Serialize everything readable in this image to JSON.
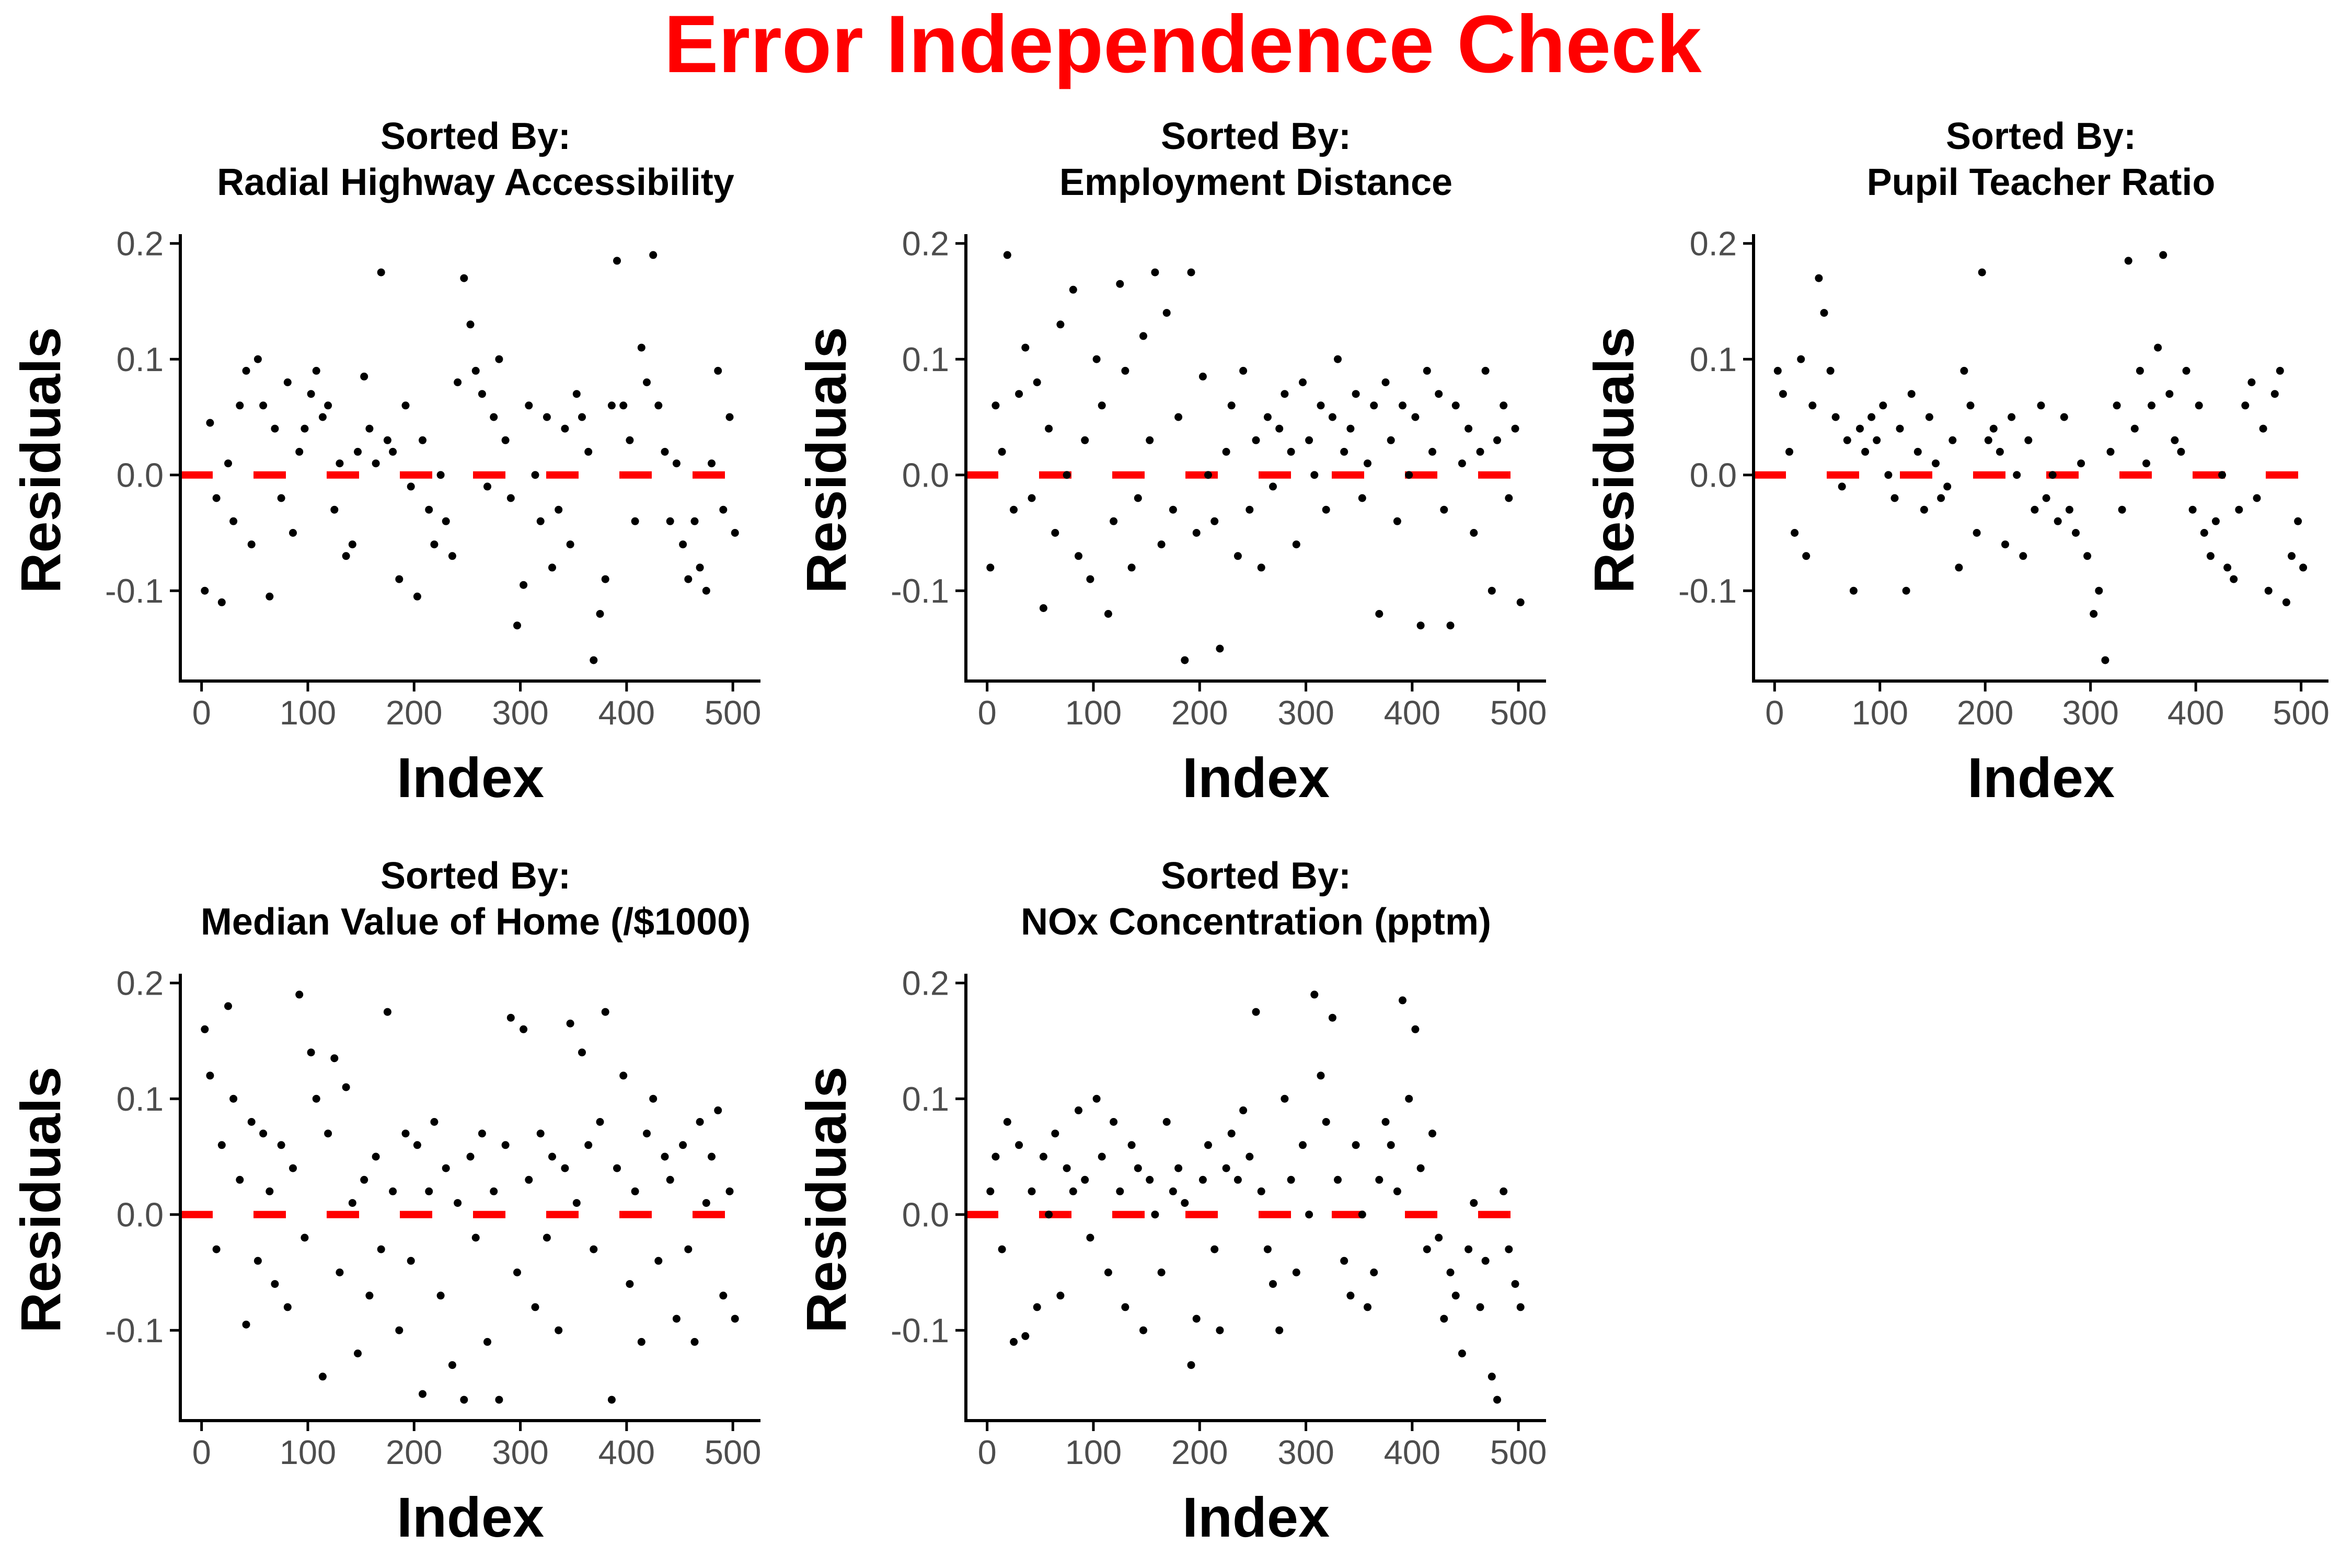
{
  "title": "Error Independence Check",
  "colors": {
    "title": "#ff0000",
    "points": "#000000",
    "reference_line": "#ff0000",
    "axis": "#000000",
    "tick_text": "#4d4d4d"
  },
  "chart_data": [
    {
      "type": "scatter",
      "title_line1": "Sorted By:",
      "title_line2": "Radial Highway Accessibility",
      "xlabel": "Index",
      "ylabel": "Residuals",
      "xlim": [
        -20,
        526
      ],
      "ylim": [
        -0.178,
        0.208
      ],
      "xticks": [
        0,
        100,
        200,
        300,
        400,
        500
      ],
      "xtick_labels": [
        "0",
        "100",
        "200",
        "300",
        "400",
        "500"
      ],
      "yticks": [
        -0.1,
        0.0,
        0.1,
        0.2
      ],
      "ytick_labels": [
        "-0.1",
        "0.0",
        "0.1",
        "0.2"
      ],
      "reference_line": 0,
      "grid": false,
      "points_x": [
        3,
        8,
        14,
        19,
        25,
        30,
        36,
        42,
        47,
        53,
        58,
        64,
        69,
        75,
        81,
        86,
        92,
        97,
        103,
        108,
        114,
        119,
        125,
        130,
        136,
        142,
        147,
        153,
        158,
        164,
        169,
        175,
        180,
        186,
        192,
        197,
        203,
        208,
        214,
        219,
        225,
        230,
        236,
        241,
        247,
        253,
        258,
        264,
        269,
        275,
        280,
        286,
        291,
        297,
        303,
        308,
        314,
        319,
        325,
        330,
        336,
        342,
        347,
        353,
        358,
        364,
        369,
        375,
        380,
        386,
        391,
        397,
        403,
        408,
        414,
        419,
        425,
        430,
        436,
        441,
        447,
        453,
        458,
        464,
        469,
        475,
        480,
        486,
        491,
        497,
        502
      ],
      "points_y": [
        -0.1,
        0.045,
        -0.02,
        -0.11,
        0.01,
        -0.04,
        0.06,
        0.09,
        -0.06,
        0.1,
        0.06,
        -0.105,
        0.04,
        -0.02,
        0.08,
        -0.05,
        0.02,
        0.04,
        0.07,
        0.09,
        0.05,
        0.06,
        -0.03,
        0.01,
        -0.07,
        -0.06,
        0.02,
        0.085,
        0.04,
        0.01,
        0.175,
        0.03,
        0.02,
        -0.09,
        0.06,
        -0.01,
        -0.105,
        0.03,
        -0.03,
        -0.06,
        0.0,
        -0.04,
        -0.07,
        0.08,
        0.17,
        0.13,
        0.09,
        0.07,
        -0.01,
        0.05,
        0.1,
        0.03,
        -0.02,
        -0.13,
        -0.095,
        0.06,
        0.0,
        -0.04,
        0.05,
        -0.08,
        -0.03,
        0.04,
        -0.06,
        0.07,
        0.05,
        0.02,
        -0.16,
        -0.12,
        -0.09,
        0.06,
        0.185,
        0.06,
        0.03,
        -0.04,
        0.11,
        0.08,
        0.19,
        0.06,
        0.02,
        -0.04,
        0.01,
        -0.06,
        -0.09,
        -0.04,
        -0.08,
        -0.1,
        0.01,
        0.09,
        -0.03,
        0.05,
        -0.05
      ]
    },
    {
      "type": "scatter",
      "title_line1": "Sorted By:",
      "title_line2": "Employment Distance",
      "xlabel": "Index",
      "ylabel": "Residuals",
      "xlim": [
        -20,
        526
      ],
      "ylim": [
        -0.178,
        0.208
      ],
      "xticks": [
        0,
        100,
        200,
        300,
        400,
        500
      ],
      "xtick_labels": [
        "0",
        "100",
        "200",
        "300",
        "400",
        "500"
      ],
      "yticks": [
        -0.1,
        0.0,
        0.1,
        0.2
      ],
      "ytick_labels": [
        "-0.1",
        "0.0",
        "0.1",
        "0.2"
      ],
      "reference_line": 0,
      "grid": false,
      "points_x": [
        3,
        8,
        14,
        19,
        25,
        30,
        36,
        42,
        47,
        53,
        58,
        64,
        69,
        75,
        81,
        86,
        92,
        97,
        103,
        108,
        114,
        119,
        125,
        130,
        136,
        142,
        147,
        153,
        158,
        164,
        169,
        175,
        180,
        186,
        192,
        197,
        203,
        208,
        214,
        219,
        225,
        230,
        236,
        241,
        247,
        253,
        258,
        264,
        269,
        275,
        280,
        286,
        291,
        297,
        303,
        308,
        314,
        319,
        325,
        330,
        336,
        342,
        347,
        353,
        358,
        364,
        369,
        375,
        380,
        386,
        391,
        397,
        403,
        408,
        414,
        419,
        425,
        430,
        436,
        441,
        447,
        453,
        458,
        464,
        469,
        475,
        480,
        486,
        491,
        497,
        502
      ],
      "points_y": [
        -0.08,
        0.06,
        0.02,
        0.19,
        -0.03,
        0.07,
        0.11,
        -0.02,
        0.08,
        -0.115,
        0.04,
        -0.05,
        0.13,
        0.0,
        0.16,
        -0.07,
        0.03,
        -0.09,
        0.1,
        0.06,
        -0.12,
        -0.04,
        0.165,
        0.09,
        -0.08,
        -0.02,
        0.12,
        0.03,
        0.175,
        -0.06,
        0.14,
        -0.03,
        0.05,
        -0.16,
        0.175,
        -0.05,
        0.085,
        0.0,
        -0.04,
        -0.15,
        0.02,
        0.06,
        -0.07,
        0.09,
        -0.03,
        0.03,
        -0.08,
        0.05,
        -0.01,
        0.04,
        0.07,
        0.02,
        -0.06,
        0.08,
        0.03,
        0.0,
        0.06,
        -0.03,
        0.05,
        0.1,
        0.02,
        0.04,
        0.07,
        -0.02,
        0.01,
        0.06,
        -0.12,
        0.08,
        0.03,
        -0.04,
        0.06,
        0.0,
        0.05,
        -0.13,
        0.09,
        0.02,
        0.07,
        -0.03,
        -0.13,
        0.06,
        0.01,
        0.04,
        -0.05,
        0.02,
        0.09,
        -0.1,
        0.03,
        0.06,
        -0.02,
        0.04,
        -0.11
      ]
    },
    {
      "type": "scatter",
      "title_line1": "Sorted By:",
      "title_line2": "Pupil Teacher Ratio",
      "xlabel": "Index",
      "ylabel": "Residuals",
      "xlim": [
        -20,
        526
      ],
      "ylim": [
        -0.178,
        0.208
      ],
      "xticks": [
        0,
        100,
        200,
        300,
        400,
        500
      ],
      "xtick_labels": [
        "0",
        "100",
        "200",
        "300",
        "400",
        "500"
      ],
      "yticks": [
        -0.1,
        0.0,
        0.1,
        0.2
      ],
      "ytick_labels": [
        "-0.1",
        "0.0",
        "0.1",
        "0.2"
      ],
      "reference_line": 0,
      "grid": false,
      "points_x": [
        3,
        8,
        14,
        19,
        25,
        30,
        36,
        42,
        47,
        53,
        58,
        64,
        69,
        75,
        81,
        86,
        92,
        97,
        103,
        108,
        114,
        119,
        125,
        130,
        136,
        142,
        147,
        153,
        158,
        164,
        169,
        175,
        180,
        186,
        192,
        197,
        203,
        208,
        214,
        219,
        225,
        230,
        236,
        241,
        247,
        253,
        258,
        264,
        269,
        275,
        280,
        286,
        291,
        297,
        303,
        308,
        314,
        319,
        325,
        330,
        336,
        342,
        347,
        353,
        358,
        364,
        369,
        375,
        380,
        386,
        391,
        397,
        403,
        408,
        414,
        419,
        425,
        430,
        436,
        441,
        447,
        453,
        458,
        464,
        469,
        475,
        480,
        486,
        491,
        497,
        502
      ],
      "points_y": [
        0.09,
        0.07,
        0.02,
        -0.05,
        0.1,
        -0.07,
        0.06,
        0.17,
        0.14,
        0.09,
        0.05,
        -0.01,
        0.03,
        -0.1,
        0.04,
        0.02,
        0.05,
        0.03,
        0.06,
        0.0,
        -0.02,
        0.04,
        -0.1,
        0.07,
        0.02,
        -0.03,
        0.05,
        0.01,
        -0.02,
        -0.01,
        0.03,
        -0.08,
        0.09,
        0.06,
        -0.05,
        0.175,
        0.03,
        0.04,
        0.02,
        -0.06,
        0.05,
        0.0,
        -0.07,
        0.03,
        -0.03,
        0.06,
        -0.02,
        0.0,
        -0.04,
        0.05,
        -0.03,
        -0.05,
        0.01,
        -0.07,
        -0.12,
        -0.1,
        -0.16,
        0.02,
        0.06,
        -0.03,
        0.185,
        0.04,
        0.09,
        0.01,
        0.06,
        0.11,
        0.19,
        0.07,
        0.03,
        0.02,
        0.09,
        -0.03,
        0.06,
        -0.05,
        -0.07,
        -0.04,
        0.0,
        -0.08,
        -0.09,
        -0.03,
        0.06,
        0.08,
        -0.02,
        0.04,
        -0.1,
        0.07,
        0.09,
        -0.11,
        -0.07,
        -0.04,
        -0.08
      ]
    },
    {
      "type": "scatter",
      "title_line1": "Sorted By:",
      "title_line2": "Median Value of Home (/$1000)",
      "xlabel": "Index",
      "ylabel": "Residuals",
      "xlim": [
        -20,
        526
      ],
      "ylim": [
        -0.178,
        0.208
      ],
      "xticks": [
        0,
        100,
        200,
        300,
        400,
        500
      ],
      "xtick_labels": [
        "0",
        "100",
        "200",
        "300",
        "400",
        "500"
      ],
      "yticks": [
        -0.1,
        0.0,
        0.1,
        0.2
      ],
      "ytick_labels": [
        "-0.1",
        "0.0",
        "0.1",
        "0.2"
      ],
      "reference_line": 0,
      "grid": false,
      "points_x": [
        3,
        8,
        14,
        19,
        25,
        30,
        36,
        42,
        47,
        53,
        58,
        64,
        69,
        75,
        81,
        86,
        92,
        97,
        103,
        108,
        114,
        119,
        125,
        130,
        136,
        142,
        147,
        153,
        158,
        164,
        169,
        175,
        180,
        186,
        192,
        197,
        203,
        208,
        214,
        219,
        225,
        230,
        236,
        241,
        247,
        253,
        258,
        264,
        269,
        275,
        280,
        286,
        291,
        297,
        303,
        308,
        314,
        319,
        325,
        330,
        336,
        342,
        347,
        353,
        358,
        364,
        369,
        375,
        380,
        386,
        391,
        397,
        403,
        408,
        414,
        419,
        425,
        430,
        436,
        441,
        447,
        453,
        458,
        464,
        469,
        475,
        480,
        486,
        491,
        497,
        502
      ],
      "points_y": [
        0.16,
        0.12,
        -0.03,
        0.06,
        0.18,
        0.1,
        0.03,
        -0.095,
        0.08,
        -0.04,
        0.07,
        0.02,
        -0.06,
        0.06,
        -0.08,
        0.04,
        0.19,
        -0.02,
        0.14,
        0.1,
        -0.14,
        0.07,
        0.135,
        -0.05,
        0.11,
        0.01,
        -0.12,
        0.03,
        -0.07,
        0.05,
        -0.03,
        0.175,
        0.02,
        -0.1,
        0.07,
        -0.04,
        0.06,
        -0.155,
        0.02,
        0.08,
        -0.07,
        0.04,
        -0.13,
        0.01,
        -0.16,
        0.05,
        -0.02,
        0.07,
        -0.11,
        0.02,
        -0.16,
        0.06,
        0.17,
        -0.05,
        0.16,
        0.03,
        -0.08,
        0.07,
        -0.02,
        0.05,
        -0.1,
        0.04,
        0.165,
        0.01,
        0.14,
        0.06,
        -0.03,
        0.08,
        0.175,
        -0.16,
        0.04,
        0.12,
        -0.06,
        0.02,
        -0.11,
        0.07,
        0.1,
        -0.04,
        0.05,
        0.03,
        -0.09,
        0.06,
        -0.03,
        -0.11,
        0.08,
        0.01,
        0.05,
        0.09,
        -0.07,
        0.02,
        -0.09
      ]
    },
    {
      "type": "scatter",
      "title_line1": "Sorted By:",
      "title_line2": "NOx Concentration (pptm)",
      "xlabel": "Index",
      "ylabel": "Residuals",
      "xlim": [
        -20,
        526
      ],
      "ylim": [
        -0.178,
        0.208
      ],
      "xticks": [
        0,
        100,
        200,
        300,
        400,
        500
      ],
      "xtick_labels": [
        "0",
        "100",
        "200",
        "300",
        "400",
        "500"
      ],
      "yticks": [
        -0.1,
        0.0,
        0.1,
        0.2
      ],
      "ytick_labels": [
        "-0.1",
        "0.0",
        "0.1",
        "0.2"
      ],
      "reference_line": 0,
      "grid": false,
      "points_x": [
        3,
        8,
        14,
        19,
        25,
        30,
        36,
        42,
        47,
        53,
        58,
        64,
        69,
        75,
        81,
        86,
        92,
        97,
        103,
        108,
        114,
        119,
        125,
        130,
        136,
        142,
        147,
        153,
        158,
        164,
        169,
        175,
        180,
        186,
        192,
        197,
        203,
        208,
        214,
        219,
        225,
        230,
        236,
        241,
        247,
        253,
        258,
        264,
        269,
        275,
        280,
        286,
        291,
        297,
        303,
        308,
        314,
        319,
        325,
        330,
        336,
        342,
        347,
        353,
        358,
        364,
        369,
        375,
        380,
        386,
        391,
        397,
        403,
        408,
        414,
        419,
        425,
        430,
        436,
        441,
        447,
        453,
        458,
        464,
        469,
        475,
        480,
        486,
        491,
        497,
        502
      ],
      "points_y": [
        0.02,
        0.05,
        -0.03,
        0.08,
        -0.11,
        0.06,
        -0.105,
        0.02,
        -0.08,
        0.05,
        0.0,
        0.07,
        -0.07,
        0.04,
        0.02,
        0.09,
        0.03,
        -0.02,
        0.1,
        0.05,
        -0.05,
        0.08,
        0.02,
        -0.08,
        0.06,
        0.04,
        -0.1,
        0.03,
        0.0,
        -0.05,
        0.08,
        0.02,
        0.04,
        0.01,
        -0.13,
        -0.09,
        0.03,
        0.06,
        -0.03,
        -0.1,
        0.04,
        0.07,
        0.03,
        0.09,
        0.05,
        0.175,
        0.02,
        -0.03,
        -0.06,
        -0.1,
        0.1,
        0.03,
        -0.05,
        0.06,
        0.0,
        0.19,
        0.12,
        0.08,
        0.17,
        0.03,
        -0.04,
        -0.07,
        0.06,
        0.0,
        -0.08,
        -0.05,
        0.03,
        0.08,
        0.06,
        0.02,
        0.185,
        0.1,
        0.16,
        0.04,
        -0.03,
        0.07,
        -0.02,
        -0.09,
        -0.05,
        -0.07,
        -0.12,
        -0.03,
        0.01,
        -0.08,
        -0.04,
        -0.14,
        -0.16,
        0.02,
        -0.03,
        -0.06,
        -0.08
      ]
    }
  ]
}
